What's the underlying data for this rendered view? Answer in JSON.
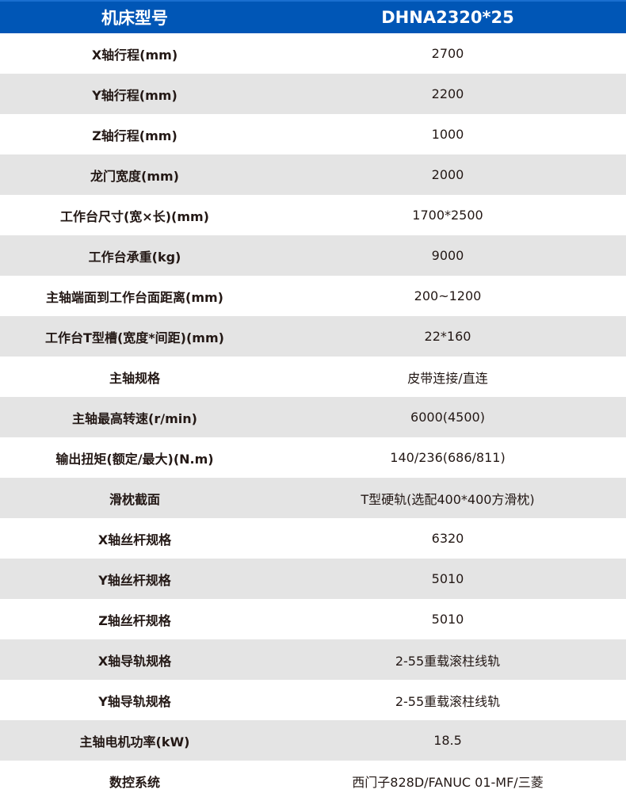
{
  "header": {
    "label": "机床型号",
    "value": "DHNA2320*25"
  },
  "colors": {
    "header_bg": "#0056b6",
    "stripe": "#e4e4e4",
    "text": "#231815"
  },
  "rows": [
    {
      "label": "X轴行程(mm)",
      "value": "2700"
    },
    {
      "label": "Y轴行程(mm)",
      "value": "2200"
    },
    {
      "label": "Z轴行程(mm)",
      "value": "1000"
    },
    {
      "label": "龙门宽度(mm)",
      "value": "2000"
    },
    {
      "label": "工作台尺寸(宽×长)(mm)",
      "value": "1700*2500"
    },
    {
      "label": "工作台承重(kg)",
      "value": "9000"
    },
    {
      "label": "主轴端面到工作台面距离(mm)",
      "value": "200~1200"
    },
    {
      "label": "工作台T型槽(宽度*间距)(mm)",
      "value": "22*160"
    },
    {
      "label": "主轴规格",
      "value": "皮带连接/直连"
    },
    {
      "label": "主轴最高转速(r/min)",
      "value": "6000(4500)"
    },
    {
      "label": "输出扭矩(额定/最大)(N.m)",
      "value": "140/236(686/811)"
    },
    {
      "label": "滑枕截面",
      "value": "T型硬轨(选配400*400方滑枕)"
    },
    {
      "label": "X轴丝杆规格",
      "value": "6320"
    },
    {
      "label": "Y轴丝杆规格",
      "value": "5010"
    },
    {
      "label": "Z轴丝杆规格",
      "value": "5010"
    },
    {
      "label": "X轴导轨规格",
      "value": "2-55重载滚柱线轨"
    },
    {
      "label": "Y轴导轨规格",
      "value": "2-55重载滚柱线轨"
    },
    {
      "label": "主轴电机功率(kW)",
      "value": "18.5"
    },
    {
      "label": "数控系统",
      "value": "西门子828D/FANUC 01-MF/三菱"
    }
  ]
}
